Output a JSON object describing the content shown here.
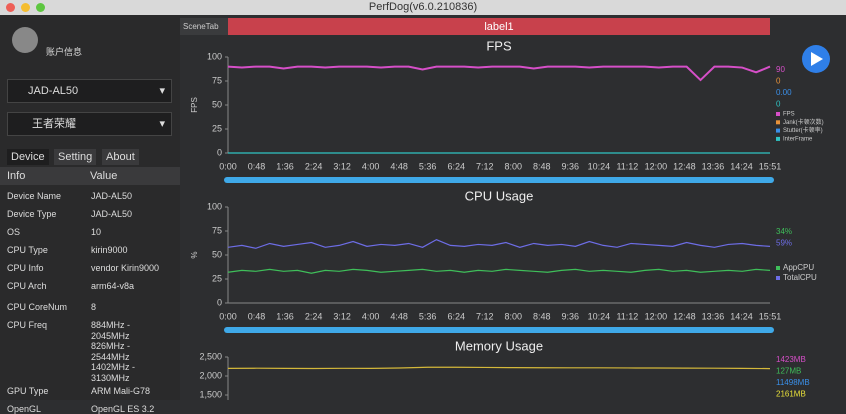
{
  "window_title": "PerfDog(v6.0.210836)",
  "sidebar": {
    "account": "账户信息",
    "device": "JAD-AL50",
    "app": "王者荣耀",
    "tabs": [
      "Device",
      "Setting",
      "About"
    ],
    "table": {
      "header": [
        "Info",
        "Value"
      ],
      "rows": [
        [
          "Device Name",
          "JAD-AL50"
        ],
        [
          "Device Type",
          "JAD-AL50"
        ],
        [
          "OS",
          "10"
        ],
        [
          "CPU Type",
          "kirin9000"
        ],
        [
          "CPU Info",
          "vendor Kirin9000"
        ],
        [
          "CPU Arch",
          "arm64-v8a"
        ],
        [
          "CPU CoreNum",
          "8"
        ],
        [
          "CPU Freq",
          [
            "884MHz -",
            "2045MHz",
            "826MHz -",
            "2544MHz",
            "1402MHz -",
            "3130MHz"
          ]
        ],
        [
          "GPU Type",
          "ARM Mali-G78"
        ],
        [
          "OpenGL",
          "OpenGL ES 3.2"
        ]
      ]
    }
  },
  "scene_tab": "SceneTab",
  "label": "label1",
  "time_axis": [
    "0:00",
    "0:48",
    "1:36",
    "2:24",
    "3:12",
    "4:00",
    "4:48",
    "5:36",
    "6:24",
    "7:12",
    "8:00",
    "8:48",
    "9:36",
    "10:24",
    "11:12",
    "12:00",
    "12:48",
    "13:36",
    "14:24",
    "15:51"
  ],
  "charts": [
    {
      "type": "line",
      "title": "FPS",
      "ylabel": "FPS",
      "ylim": [
        0,
        100
      ],
      "yticks": [
        0,
        25,
        50,
        75,
        100
      ],
      "series": [
        {
          "name": "FPS",
          "color": "#d64fc8",
          "values": [
            90,
            89,
            90,
            90,
            88,
            90,
            90,
            89,
            90,
            90,
            90,
            89,
            90,
            90,
            87,
            90,
            90,
            90,
            89,
            90,
            90,
            90,
            88,
            90,
            90,
            90,
            89,
            90,
            90,
            90,
            90,
            89,
            90,
            90,
            76,
            90,
            90,
            89,
            84,
            90
          ]
        },
        {
          "name": "Jank(卡顿次数)",
          "color": "#e8923a",
          "values": []
        },
        {
          "name": "Stutter(卡顿率)",
          "color": "#3a8fe8",
          "values": []
        },
        {
          "name": "InterFrame",
          "color": "#2fc4c4",
          "values": [
            0,
            0,
            0,
            0,
            0,
            0,
            0,
            0,
            0,
            0
          ]
        }
      ],
      "current": [
        {
          "text": "90",
          "color": "#d64fc8"
        },
        {
          "text": "0",
          "color": "#e8923a"
        },
        {
          "text": "0.00",
          "color": "#3a8fe8"
        },
        {
          "text": "0",
          "color": "#2fc4c4"
        }
      ]
    },
    {
      "type": "line",
      "title": "CPU Usage",
      "ylabel": "%",
      "ylim": [
        0,
        100
      ],
      "yticks": [
        0,
        25,
        50,
        75,
        100
      ],
      "series": [
        {
          "name": "AppCPU",
          "color": "#3fbf5a",
          "values": [
            32,
            34,
            33,
            35,
            33,
            34,
            31,
            34,
            33,
            35,
            34,
            32,
            33,
            34,
            35,
            33,
            34,
            32,
            34,
            33,
            35,
            34,
            33,
            32,
            34,
            35,
            33,
            34,
            33,
            32,
            34,
            35,
            33,
            34,
            32,
            33,
            34,
            33,
            35,
            34
          ]
        },
        {
          "name": "TotalCPU",
          "color": "#6d6de6",
          "values": [
            58,
            60,
            57,
            62,
            59,
            61,
            63,
            58,
            60,
            64,
            59,
            61,
            60,
            62,
            58,
            66,
            60,
            59,
            61,
            60,
            63,
            58,
            62,
            60,
            61,
            59,
            64,
            60,
            58,
            62,
            61,
            60,
            59,
            63,
            60,
            58,
            61,
            62,
            60,
            59
          ]
        }
      ],
      "current": [
        {
          "text": "34%",
          "color": "#3fbf5a"
        },
        {
          "text": "59%",
          "color": "#6d6de6"
        }
      ]
    },
    {
      "type": "line",
      "title": "Memory Usage",
      "ylim": [
        1500,
        2500
      ],
      "yticks": [
        {
          "value": 1500,
          "label": "1,500"
        },
        {
          "value": 2000,
          "label": "2,000"
        },
        {
          "value": 2500,
          "label": "2,500"
        }
      ],
      "series": [
        {
          "color": "#d4b83a",
          "values": [
            2200,
            2205,
            2200,
            2198,
            2202,
            2200,
            2210,
            2230,
            2230,
            2225,
            2220,
            2218,
            2215,
            2215,
            2212,
            2210,
            2208,
            2205,
            2200,
            2195
          ]
        }
      ],
      "current": [
        {
          "text": "1423MB",
          "color": "#d64fc8"
        },
        {
          "text": "127MB",
          "color": "#3fbf5a"
        },
        {
          "text": "11498MB",
          "color": "#3a8fe8"
        },
        {
          "text": "2161MB",
          "color": "#e8e03a"
        }
      ]
    }
  ]
}
